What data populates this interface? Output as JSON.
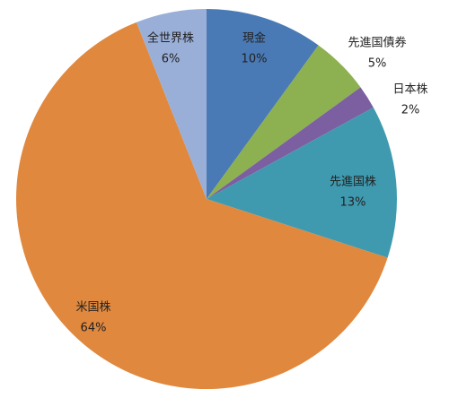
{
  "chart_data": {
    "type": "pie",
    "categories": [
      "現金",
      "先進国債券",
      "日本株",
      "先進国株",
      "米国株",
      "全世界株"
    ],
    "values": [
      10,
      5,
      2,
      13,
      64,
      6
    ],
    "value_labels": [
      "10%",
      "5%",
      "2%",
      "13%",
      "64%",
      "6%"
    ],
    "colors": [
      "#4a7ab5",
      "#8db050",
      "#7b5fa0",
      "#3f9ab0",
      "#e0883e",
      "#9aafd8"
    ]
  }
}
